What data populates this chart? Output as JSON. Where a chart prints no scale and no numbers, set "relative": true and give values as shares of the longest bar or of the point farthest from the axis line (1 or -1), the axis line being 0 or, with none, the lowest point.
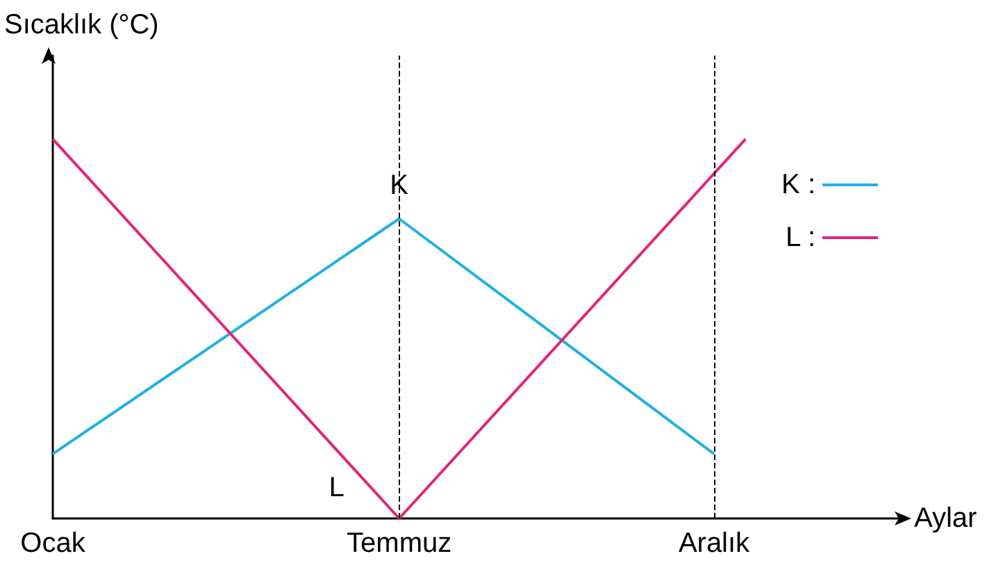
{
  "chart_data": {
    "type": "line",
    "relative": true,
    "xlabel": "Aylar",
    "ylabel": "Sıcaklık (°C)",
    "categories": [
      "Ocak",
      null,
      null,
      null,
      null,
      null,
      null,
      null,
      null,
      null,
      null,
      "Temmuz",
      null,
      null,
      null,
      null,
      null,
      null,
      null,
      null,
      null,
      "Aralık",
      null,
      null,
      null,
      null,
      null,
      null
    ],
    "series": [
      {
        "name": "K :",
        "color": "#1fb1e2",
        "values": [
          0.17,
          null,
          null,
          null,
          null,
          null,
          null,
          null,
          null,
          null,
          null,
          0.79,
          null,
          null,
          null,
          null,
          null,
          null,
          null,
          null,
          null,
          0.17,
          null,
          null,
          null,
          null,
          null,
          null
        ]
      },
      {
        "name": "L :",
        "color": "#e2257a",
        "values": [
          1,
          null,
          null,
          null,
          null,
          null,
          null,
          null,
          null,
          null,
          null,
          0,
          null,
          null,
          null,
          null,
          null,
          null,
          null,
          null,
          null,
          null,
          1,
          null,
          null,
          null,
          null,
          null
        ]
      }
    ],
    "ref_lines": [
      {
        "axis": "x",
        "value": "Temmuz",
        "line_style": "dashed",
        "color": "#000000"
      },
      {
        "axis": "x",
        "value": "Aralık",
        "line_style": "dashed",
        "color": "#000000"
      }
    ],
    "annotations": [
      {
        "text": "K",
        "x": "Temmuz",
        "y": 0.79
      },
      {
        "text": "L",
        "x": "Temmuz",
        "y": 0
      }
    ],
    "legend": "top right",
    "grid": false,
    "marker": "none",
    "line_style": "solid"
  }
}
